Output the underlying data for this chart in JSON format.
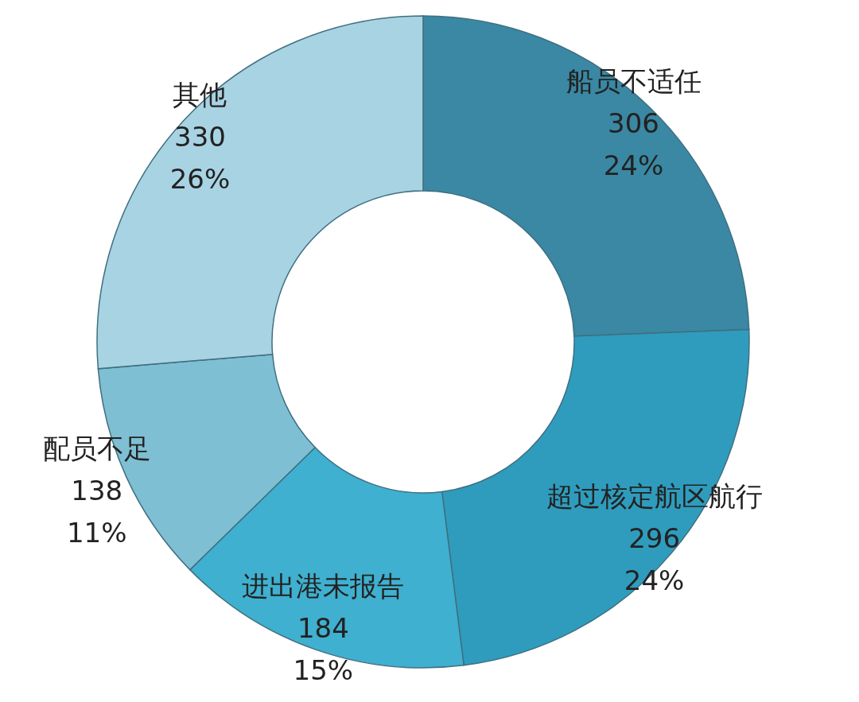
{
  "chart_data": {
    "type": "donut",
    "categories": [
      "船员不适任",
      "超过核定航区航行",
      "进出港未报告",
      "配员不足",
      "其他"
    ],
    "values": [
      306,
      296,
      184,
      138,
      330
    ],
    "colors": [
      "#3a88a3",
      "#2f9cbd",
      "#3fb0cf",
      "#7fbfd4",
      "#a8d3e2"
    ],
    "value_labels": [
      "306\n24%",
      "296\n24%",
      "184\n15%",
      "138\n11%",
      "330\n26%"
    ]
  }
}
